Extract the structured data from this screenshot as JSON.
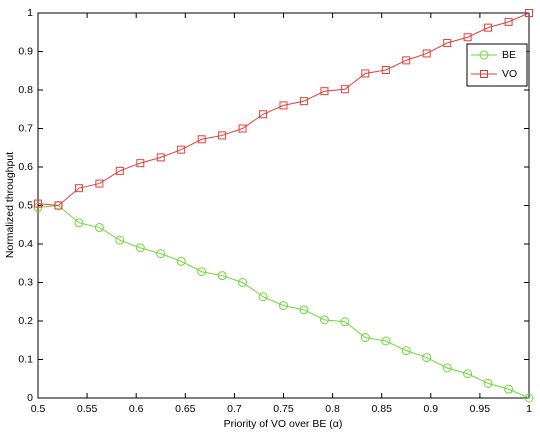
{
  "chart_data": {
    "type": "line",
    "xlabel": "Priority of VO over BE (α)",
    "ylabel": "Normalized throughput",
    "x": [
      0.5,
      0.5208,
      0.5417,
      0.5625,
      0.5833,
      0.6042,
      0.625,
      0.6458,
      0.6667,
      0.6875,
      0.7083,
      0.7292,
      0.75,
      0.7708,
      0.7917,
      0.8125,
      0.8333,
      0.8542,
      0.875,
      0.8958,
      0.9167,
      0.9375,
      0.9583,
      0.9792,
      1.0
    ],
    "series": [
      {
        "name": "BE",
        "color": "#6fd63a",
        "marker": "circle",
        "values": [
          0.495,
          0.5,
          0.455,
          0.443,
          0.41,
          0.39,
          0.375,
          0.355,
          0.328,
          0.318,
          0.3,
          0.263,
          0.24,
          0.229,
          0.203,
          0.198,
          0.157,
          0.148,
          0.123,
          0.105,
          0.078,
          0.063,
          0.038,
          0.023,
          0.0
        ]
      },
      {
        "name": "VO",
        "color": "#e0403a",
        "marker": "square",
        "values": [
          0.505,
          0.5,
          0.545,
          0.557,
          0.59,
          0.61,
          0.625,
          0.645,
          0.672,
          0.682,
          0.7,
          0.737,
          0.76,
          0.771,
          0.797,
          0.802,
          0.843,
          0.852,
          0.877,
          0.895,
          0.922,
          0.937,
          0.962,
          0.977,
          1.0
        ]
      }
    ],
    "xlim": [
      0.5,
      1
    ],
    "xticks": [
      0.5,
      0.55,
      0.6,
      0.65,
      0.7,
      0.75,
      0.8,
      0.85,
      0.9,
      0.95,
      1
    ],
    "ylim": [
      0,
      1
    ],
    "yticks": [
      0,
      0.1,
      0.2,
      0.3,
      0.4,
      0.5,
      0.6,
      0.7,
      0.8,
      0.9,
      1
    ],
    "grid": false,
    "legend": "upper-right"
  }
}
